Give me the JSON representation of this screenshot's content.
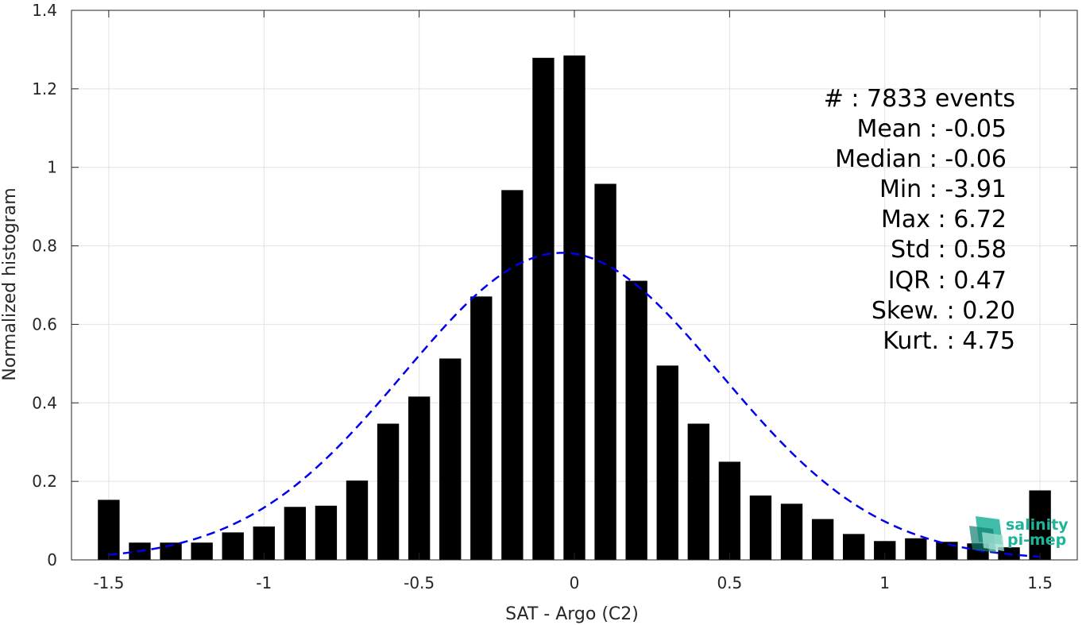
{
  "chart_data": {
    "type": "bar",
    "xlabel": "SAT - Argo (C2)",
    "ylabel": "Normalized histogram",
    "xlim": [
      -1.62,
      1.62
    ],
    "ylim": [
      0,
      1.4
    ],
    "xticks": [
      -1.5,
      -1,
      -0.5,
      0,
      0.5,
      1,
      1.5
    ],
    "xtick_labels": [
      "-1.5",
      "-1",
      "-0.5",
      "0",
      "0.5",
      "1",
      "1.5"
    ],
    "yticks": [
      0,
      0.2,
      0.4,
      0.6,
      0.8,
      1,
      1.2,
      1.4
    ],
    "ytick_labels": [
      "0",
      "0.2",
      "0.4",
      "0.6",
      "0.8",
      "1",
      "1.2",
      "1.4"
    ],
    "grid": true,
    "bar_color": "#000000",
    "bar_width": 0.07,
    "x": [
      -1.5,
      -1.4,
      -1.3,
      -1.2,
      -1.1,
      -1.0,
      -0.9,
      -0.8,
      -0.7,
      -0.6,
      -0.5,
      -0.4,
      -0.3,
      -0.2,
      -0.1,
      0.0,
      0.1,
      0.2,
      0.3,
      0.4,
      0.5,
      0.6,
      0.7,
      0.8,
      0.9,
      1.0,
      1.1,
      1.2,
      1.3,
      1.4,
      1.5
    ],
    "values": [
      0.153,
      0.044,
      0.044,
      0.044,
      0.07,
      0.085,
      0.135,
      0.138,
      0.202,
      0.347,
      0.416,
      0.513,
      0.671,
      0.942,
      1.279,
      1.285,
      0.958,
      0.711,
      0.495,
      0.347,
      0.25,
      0.164,
      0.143,
      0.104,
      0.066,
      0.048,
      0.055,
      0.046,
      0.042,
      0.032,
      0.177
    ],
    "fit_curve": {
      "type": "gaussian",
      "color": "#0000ee",
      "style": "dashed",
      "mean": -0.04,
      "std": 0.51,
      "x_range": [
        -1.5,
        1.5
      ]
    },
    "stats": [
      {
        "text": "#  : 7833 events"
      },
      {
        "text": "Mean : -0.05"
      },
      {
        "text": "Median : -0.06"
      },
      {
        "text": "Min : -3.91"
      },
      {
        "text": "Max : 6.72"
      },
      {
        "text": "Std : 0.58"
      },
      {
        "text": "IQR : 0.47"
      },
      {
        "text": "Skew. : 0.20"
      },
      {
        "text": "Kurt. : 4.75"
      }
    ]
  },
  "logo": {
    "line1": "salinity",
    "line2": "pi-mep",
    "colors": [
      "#1fb39a",
      "#127f70",
      "#9fe0d2"
    ]
  }
}
